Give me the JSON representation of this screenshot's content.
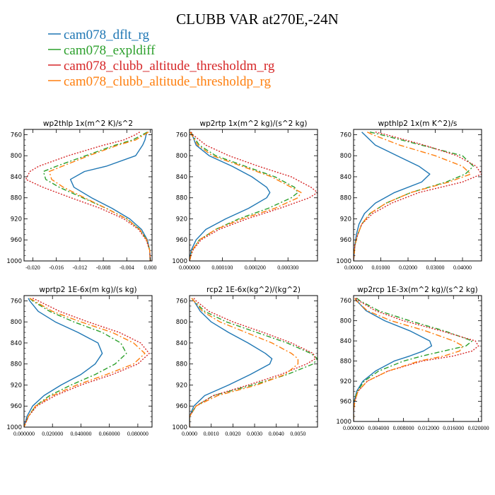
{
  "title": "CLUBB VAR at270E,-24N",
  "legend": [
    {
      "name": "cam078_dflt_rg",
      "color": "#1f77b4",
      "dash": ""
    },
    {
      "name": "cam078_expldiff",
      "color": "#2ca02c",
      "dash": "7,3,2,3"
    },
    {
      "name": "cam078_clubb_altitude_thresholdm_rg",
      "color": "#d62728",
      "dash": "2,2"
    },
    {
      "name": "cam078_clubb_altitude_thresholdp_rg",
      "color": "#ff7f0e",
      "dash": "8,3,2,3"
    }
  ],
  "chart_data": [
    {
      "type": "line",
      "title": "wp2thlp  1x(m^2 K)/s^2",
      "ylim": [
        1000,
        750
      ],
      "y_ticks": [
        760,
        800,
        840,
        880,
        920,
        960,
        1000
      ],
      "xlim": [
        -0.0215,
        0.0003
      ],
      "x_ticks": [
        -0.02,
        -0.016,
        -0.012,
        -0.008,
        -0.004,
        0.0
      ],
      "x_tick_labels": [
        "-0.020",
        "-0.016",
        "-0.012",
        "-0.008",
        "-0.004",
        "0.000"
      ],
      "y": [
        755,
        760,
        770,
        780,
        800,
        820,
        830,
        845,
        860,
        880,
        900,
        920,
        940,
        960,
        980,
        1000
      ],
      "series": [
        {
          "name": "cam078_dflt_rg",
          "x": [
            -0.0005,
            -0.0007,
            -0.0009,
            -0.0013,
            -0.0025,
            -0.0075,
            -0.0112,
            -0.0136,
            -0.013,
            -0.01,
            -0.0065,
            -0.0035,
            -0.0015,
            -0.0005,
            -0.0001,
            0.0
          ]
        },
        {
          "name": "cam078_expldiff",
          "x": [
            -0.0005,
            -0.0013,
            -0.003,
            -0.006,
            -0.011,
            -0.016,
            -0.0182,
            -0.0178,
            -0.0155,
            -0.0115,
            -0.0075,
            -0.004,
            -0.0018,
            -0.0006,
            -0.0001,
            0.0
          ]
        },
        {
          "name": "cam078_clubb_altitude_thresholdm_rg",
          "x": [
            -0.0018,
            -0.0025,
            -0.0045,
            -0.008,
            -0.014,
            -0.019,
            -0.0205,
            -0.0212,
            -0.0183,
            -0.0135,
            -0.0085,
            -0.0045,
            -0.002,
            -0.0007,
            -0.0001,
            0.0
          ]
        },
        {
          "name": "cam078_clubb_altitude_thresholdp_rg",
          "x": [
            -0.0003,
            -0.001,
            -0.0025,
            -0.0055,
            -0.0105,
            -0.015,
            -0.0172,
            -0.0168,
            -0.0148,
            -0.0112,
            -0.0075,
            -0.004,
            -0.0018,
            -0.0006,
            -0.0001,
            0.0
          ]
        }
      ]
    },
    {
      "type": "line",
      "title": "wp2rtp  1x(m^2 kg)/(s^2 kg)",
      "ylim": [
        1000,
        750
      ],
      "y_ticks": [
        760,
        800,
        840,
        880,
        920,
        960,
        1000
      ],
      "xlim": [
        0,
        0.00039
      ],
      "x_ticks": [
        0,
        0.0001,
        0.0002,
        0.0003
      ],
      "x_tick_labels": [
        "0.000000",
        "0.000100",
        "0.000200",
        "0.000300"
      ],
      "y": [
        755,
        760,
        780,
        800,
        820,
        840,
        860,
        870,
        880,
        900,
        920,
        940,
        960,
        980,
        1000
      ],
      "series": [
        {
          "name": "cam078_dflt_rg",
          "x": [
            5e-06,
            8e-06,
            2e-05,
            6e-05,
            0.00013,
            0.00019,
            0.000235,
            0.000245,
            0.000235,
            0.00018,
            0.00011,
            5e-05,
            2e-05,
            5e-06,
            0.0
          ]
        },
        {
          "name": "cam078_expldiff",
          "x": [
            3e-06,
            8e-06,
            3e-05,
            8e-05,
            0.00017,
            0.00026,
            0.00032,
            0.00033,
            0.00031,
            0.00024,
            0.00015,
            8e-05,
            3e-05,
            8e-06,
            0.0
          ]
        },
        {
          "name": "cam078_clubb_altitude_thresholdm_rg",
          "x": [
            5e-06,
            1e-05,
            5e-05,
            0.00012,
            0.00021,
            0.00031,
            0.00037,
            0.00039,
            0.000365,
            0.000275,
            0.000175,
            9e-05,
            3.5e-05,
            1e-05,
            0.0
          ]
        },
        {
          "name": "cam078_clubb_altitude_thresholdp_rg",
          "x": [
            2e-06,
            6e-06,
            2.5e-05,
            7e-05,
            0.00016,
            0.00025,
            0.00031,
            0.00034,
            0.00033,
            0.00026,
            0.00016,
            8e-05,
            3e-05,
            8e-06,
            0.0
          ]
        }
      ]
    },
    {
      "type": "line",
      "title": "wpthlp2  1x(m K^2)/s",
      "ylim": [
        1000,
        750
      ],
      "y_ticks": [
        760,
        800,
        840,
        880,
        920,
        960,
        1000
      ],
      "xlim": [
        0,
        0.047
      ],
      "x_ticks": [
        0,
        0.01,
        0.02,
        0.03,
        0.04
      ],
      "x_tick_labels": [
        "0.00000",
        "0.01000",
        "0.02000",
        "0.03000",
        "0.04000"
      ],
      "y": [
        755,
        760,
        780,
        800,
        820,
        835,
        850,
        870,
        890,
        910,
        930,
        950,
        970,
        1000
      ],
      "series": [
        {
          "name": "cam078_dflt_rg",
          "x": [
            0.003,
            0.004,
            0.008,
            0.016,
            0.024,
            0.028,
            0.025,
            0.015,
            0.008,
            0.004,
            0.002,
            0.001,
            0.0005,
            0.0
          ]
        },
        {
          "name": "cam078_expldiff",
          "x": [
            0.006,
            0.01,
            0.025,
            0.04,
            0.044,
            0.041,
            0.034,
            0.021,
            0.012,
            0.006,
            0.003,
            0.0015,
            0.0005,
            0.0
          ]
        },
        {
          "name": "cam078_clubb_altitude_thresholdm_rg",
          "x": [
            0.008,
            0.012,
            0.026,
            0.038,
            0.045,
            0.047,
            0.04,
            0.024,
            0.014,
            0.007,
            0.003,
            0.0015,
            0.0005,
            0.0
          ]
        },
        {
          "name": "cam078_clubb_altitude_thresholdp_rg",
          "x": [
            0.005,
            0.007,
            0.017,
            0.03,
            0.04,
            0.043,
            0.035,
            0.021,
            0.012,
            0.006,
            0.003,
            0.0015,
            0.0005,
            0.0
          ]
        }
      ]
    },
    {
      "type": "line",
      "title": "wprtp2  1E-6x(m kg)/(s kg)",
      "ylim": [
        1000,
        750
      ],
      "y_ticks": [
        760,
        800,
        840,
        880,
        920,
        960,
        1000
      ],
      "xlim": [
        0,
        0.09
      ],
      "x_ticks": [
        0,
        0.02,
        0.04,
        0.06,
        0.08
      ],
      "x_tick_labels": [
        "0.000000",
        "0.020000",
        "0.040000",
        "0.060000",
        "0.080000"
      ],
      "y": [
        755,
        760,
        780,
        800,
        820,
        840,
        860,
        880,
        900,
        920,
        940,
        960,
        980,
        1000
      ],
      "series": [
        {
          "name": "cam078_dflt_rg",
          "x": [
            0.003,
            0.004,
            0.01,
            0.022,
            0.038,
            0.052,
            0.055,
            0.05,
            0.04,
            0.026,
            0.014,
            0.006,
            0.002,
            0.0
          ]
        },
        {
          "name": "cam078_expldiff",
          "x": [
            0.004,
            0.006,
            0.018,
            0.035,
            0.055,
            0.068,
            0.072,
            0.064,
            0.05,
            0.033,
            0.018,
            0.008,
            0.003,
            0.0
          ]
        },
        {
          "name": "cam078_clubb_altitude_thresholdm_rg",
          "x": [
            0.006,
            0.01,
            0.025,
            0.045,
            0.067,
            0.082,
            0.088,
            0.08,
            0.062,
            0.04,
            0.022,
            0.009,
            0.003,
            0.0
          ]
        },
        {
          "name": "cam078_clubb_altitude_thresholdp_rg",
          "x": [
            0.004,
            0.007,
            0.02,
            0.04,
            0.062,
            0.077,
            0.085,
            0.077,
            0.058,
            0.037,
            0.02,
            0.008,
            0.003,
            0.0
          ]
        }
      ]
    },
    {
      "type": "line",
      "title": "rcp2  1E-6x(kg^2)/(kg^2)",
      "ylim": [
        1000,
        750
      ],
      "y_ticks": [
        760,
        800,
        840,
        880,
        920,
        960,
        1000
      ],
      "xlim": [
        0,
        0.0059
      ],
      "x_ticks": [
        0,
        0.001,
        0.002,
        0.003,
        0.004,
        0.005
      ],
      "x_tick_labels": [
        "0.0000",
        "0.0010",
        "0.0020",
        "0.0030",
        "0.0040",
        "0.0050"
      ],
      "y": [
        755,
        760,
        780,
        800,
        820,
        840,
        860,
        870,
        880,
        900,
        920,
        940,
        960,
        980,
        1000
      ],
      "series": [
        {
          "name": "cam078_dflt_rg",
          "x": [
            0.0001,
            0.0002,
            0.0005,
            0.001,
            0.0018,
            0.0027,
            0.0035,
            0.0038,
            0.0037,
            0.0028,
            0.0018,
            0.0007,
            0.0002,
            0.0,
            0.0
          ]
        },
        {
          "name": "cam078_expldiff",
          "x": [
            0.0001,
            0.0002,
            0.0007,
            0.0017,
            0.0031,
            0.0045,
            0.0056,
            0.0059,
            0.0057,
            0.0045,
            0.0029,
            0.0011,
            0.0003,
            0.0,
            0.0
          ]
        },
        {
          "name": "cam078_clubb_altitude_thresholdm_rg",
          "x": [
            0.0002,
            0.0003,
            0.0009,
            0.002,
            0.0034,
            0.0047,
            0.0057,
            0.0058,
            0.0054,
            0.0042,
            0.0027,
            0.0011,
            0.0003,
            0.0,
            0.0
          ]
        },
        {
          "name": "cam078_clubb_altitude_thresholdp_rg",
          "x": [
            0.0001,
            0.0002,
            0.0006,
            0.0014,
            0.0026,
            0.0038,
            0.0047,
            0.005,
            0.005,
            0.0044,
            0.0031,
            0.0013,
            0.0003,
            0.0,
            0.0
          ]
        }
      ]
    },
    {
      "type": "line",
      "title": "wp2rcp  1E-3x(m^2 kg)/(s^2 kg)",
      "ylim": [
        1000,
        750
      ],
      "y_ticks": [
        760,
        800,
        840,
        880,
        920,
        960,
        1000
      ],
      "xlim": [
        0,
        0.0205
      ],
      "x_ticks": [
        0,
        0.004,
        0.008,
        0.012,
        0.016,
        0.02
      ],
      "x_tick_labels": [
        "0.000000",
        "0.004000",
        "0.008000",
        "0.012000",
        "0.016000",
        "0.020000"
      ],
      "y": [
        755,
        760,
        780,
        800,
        820,
        840,
        850,
        860,
        870,
        880,
        900,
        920,
        940,
        960,
        980,
        1000
      ],
      "series": [
        {
          "name": "cam078_dflt_rg",
          "x": [
            0.0003,
            0.0005,
            0.002,
            0.005,
            0.009,
            0.0122,
            0.0125,
            0.0112,
            0.009,
            0.0065,
            0.0035,
            0.0015,
            0.0005,
            0.0001,
            0.0,
            0.0
          ]
        },
        {
          "name": "cam078_expldiff",
          "x": [
            0.0005,
            0.001,
            0.004,
            0.009,
            0.0145,
            0.019,
            0.018,
            0.0145,
            0.011,
            0.008,
            0.004,
            0.0017,
            0.0006,
            0.0001,
            0.0,
            0.0
          ]
        },
        {
          "name": "cam078_clubb_altitude_thresholdm_rg",
          "x": [
            0.0004,
            0.0008,
            0.0035,
            0.008,
            0.014,
            0.0195,
            0.02,
            0.019,
            0.016,
            0.011,
            0.0055,
            0.0022,
            0.0007,
            0.0002,
            0.0,
            0.0
          ]
        },
        {
          "name": "cam078_clubb_altitude_thresholdp_rg",
          "x": [
            0.0002,
            0.0004,
            0.0022,
            0.006,
            0.0115,
            0.016,
            0.0175,
            0.017,
            0.0145,
            0.0105,
            0.0055,
            0.0022,
            0.0007,
            0.0002,
            0.0,
            0.0
          ]
        }
      ]
    }
  ]
}
